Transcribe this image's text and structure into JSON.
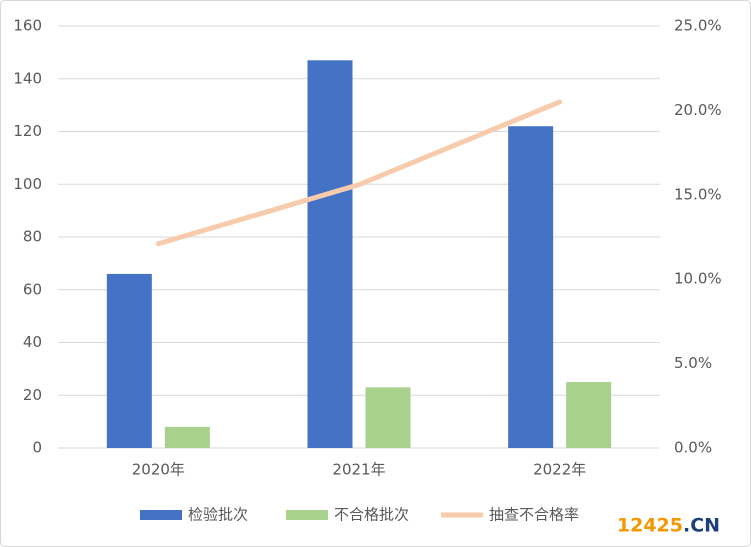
{
  "chart_data": {
    "type": "bar",
    "categories": [
      "2020年",
      "2021年",
      "2022年"
    ],
    "series": [
      {
        "name": "检验批次",
        "color": "#4472c4",
        "values": [
          66,
          147,
          122
        ]
      },
      {
        "name": "不合格批次",
        "color": "#a9d18e",
        "values": [
          8,
          23,
          25
        ]
      },
      {
        "name": "抽查不合格率",
        "color": "#f8cbad",
        "type": "line",
        "axis": "y2",
        "values": [
          12.1,
          15.6,
          20.5
        ]
      }
    ],
    "ylim": [
      0,
      160
    ],
    "yticks": [
      0,
      20,
      40,
      60,
      80,
      100,
      120,
      140,
      160
    ],
    "y2lim": [
      0,
      25
    ],
    "y2ticks": [
      {
        "value": 0,
        "label": "0.0%"
      },
      {
        "value": 5,
        "label": "5.0%"
      },
      {
        "value": 10,
        "label": "10.0%"
      },
      {
        "value": 15,
        "label": "15.0%"
      },
      {
        "value": 20,
        "label": "20.0%"
      },
      {
        "value": 25,
        "label": "25.0%"
      }
    ],
    "grid": true,
    "legend": "bottom"
  },
  "watermark": {
    "number": "12425",
    "suffix": ".CN"
  }
}
